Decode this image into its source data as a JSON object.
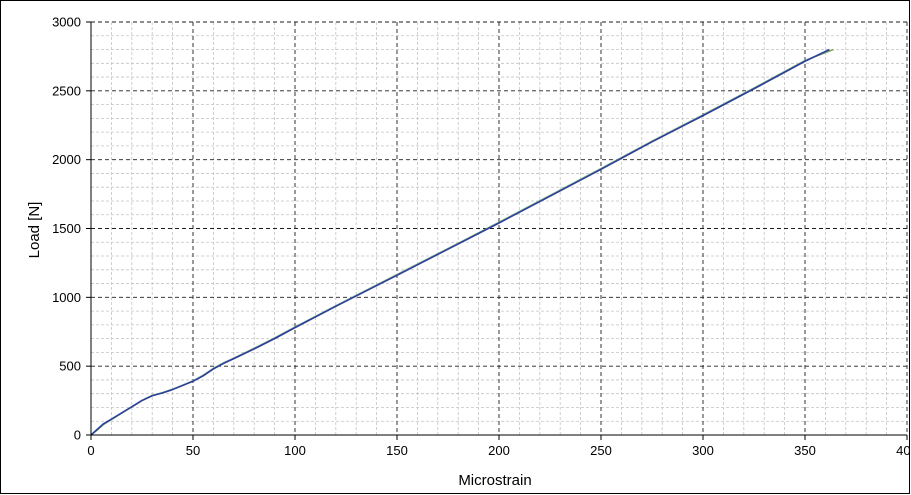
{
  "chart_data": {
    "type": "line",
    "title": "",
    "xlabel": "Microstrain",
    "ylabel": "Load [N]",
    "xlim": [
      0,
      400
    ],
    "ylim": [
      0,
      3000
    ],
    "x_ticks": [
      0,
      50,
      100,
      150,
      200,
      250,
      300,
      350,
      400
    ],
    "y_ticks": [
      0,
      500,
      1000,
      1500,
      2000,
      2500,
      3000
    ],
    "x_tick_labels": [
      "0",
      "50",
      "100",
      "150",
      "200",
      "250",
      "300",
      "350",
      "400"
    ],
    "y_tick_labels": [
      "0",
      "500",
      "1000",
      "1500",
      "2000",
      "2500",
      "3000"
    ],
    "x_minor_step": 10,
    "y_minor_step": 100,
    "grid": true,
    "legend": "none",
    "series": [
      {
        "color": "#2b3fa0",
        "x": [
          0,
          3,
          6,
          10,
          15,
          20,
          25,
          30,
          35,
          40,
          45,
          50,
          55,
          60,
          65,
          70,
          80,
          90,
          100,
          120,
          150,
          175,
          200,
          225,
          250,
          275,
          300,
          325,
          350,
          362
        ],
        "values": [
          0,
          40,
          80,
          115,
          160,
          205,
          250,
          285,
          305,
          330,
          360,
          390,
          430,
          480,
          520,
          555,
          625,
          700,
          780,
          935,
          1160,
          1350,
          1540,
          1735,
          1930,
          2130,
          2320,
          2515,
          2715,
          2800
        ]
      },
      {
        "color": "#7fae6a",
        "x": [
          0,
          3,
          6,
          10,
          15,
          20,
          25,
          30,
          35,
          40,
          45,
          50,
          55,
          60,
          65,
          70,
          80,
          90,
          100,
          120,
          150,
          175,
          200,
          225,
          250,
          275,
          300,
          325,
          350,
          364
        ],
        "values": [
          0,
          35,
          75,
          112,
          158,
          205,
          252,
          287,
          308,
          332,
          362,
          393,
          434,
          484,
          524,
          558,
          630,
          705,
          784,
          938,
          1165,
          1354,
          1545,
          1740,
          1935,
          2134,
          2325,
          2520,
          2720,
          2800
        ]
      }
    ]
  }
}
